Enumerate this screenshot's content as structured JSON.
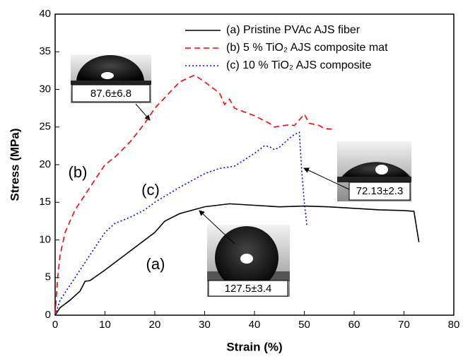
{
  "chart_data": {
    "type": "line",
    "x_label": "Strain (%)",
    "y_label": "Stress (MPa)",
    "xlim": [
      0,
      80
    ],
    "xticks": [
      0,
      10,
      20,
      30,
      40,
      50,
      60,
      70,
      80
    ],
    "ylim": [
      0,
      40
    ],
    "yticks": [
      0,
      5,
      10,
      15,
      20,
      25,
      30,
      35,
      40
    ],
    "series": [
      {
        "name": "(a) Pristine PVAc AJS fiber",
        "color": "#000000",
        "dash": "solid",
        "x": [
          0,
          1,
          3,
          5,
          6,
          7,
          10,
          15,
          20,
          22,
          25,
          30,
          35,
          40,
          45,
          50,
          55,
          60,
          65,
          70,
          72,
          73
        ],
        "values": [
          0,
          1,
          2,
          3.2,
          4.5,
          4.6,
          6,
          8.5,
          11,
          12.5,
          13.5,
          14.4,
          14.8,
          14.6,
          14.4,
          14.5,
          14.4,
          14.2,
          14,
          13.9,
          13.8,
          9.7
        ]
      },
      {
        "name": "(b) 5 % TiO₂ AJS composite mat",
        "color": "#ff0000",
        "dash": "dashed",
        "x": [
          0,
          0.5,
          1,
          2,
          4,
          6,
          8,
          10,
          12,
          15,
          18,
          20,
          25,
          28,
          30,
          33,
          34,
          35,
          36,
          40,
          43,
          44,
          47,
          48,
          50,
          51,
          53,
          54,
          56
        ],
        "values": [
          0,
          5,
          8,
          11,
          14,
          16,
          18,
          20,
          21,
          23,
          25.5,
          27.5,
          31,
          31.9,
          31,
          29.5,
          28,
          28.7,
          27.5,
          26.5,
          25.5,
          25,
          25.3,
          25.2,
          26.7,
          25.5,
          25.2,
          24.8,
          24.7
        ]
      },
      {
        "name": "(c) 10 % TiO₂ AJS composite",
        "color": "#0000ff",
        "dash": "dotted",
        "x": [
          0,
          1,
          3,
          5,
          8,
          10,
          12,
          15,
          18,
          20,
          25,
          30,
          33,
          36,
          40,
          42,
          43,
          44,
          45,
          47,
          48,
          49,
          49.5,
          50,
          50.5
        ],
        "values": [
          0,
          2,
          4,
          6,
          9,
          11,
          12.2,
          13,
          14,
          15,
          17,
          18.8,
          19.5,
          19.8,
          21.5,
          22.5,
          22.4,
          22,
          22.3,
          23.5,
          24,
          24.3,
          19,
          15,
          12
        ]
      }
    ],
    "annotations": [
      "(a)",
      "(b)",
      "(c)"
    ],
    "contact_angles": [
      "87.6±6.8",
      "72.13±2.3",
      "127.5±3.4"
    ]
  }
}
